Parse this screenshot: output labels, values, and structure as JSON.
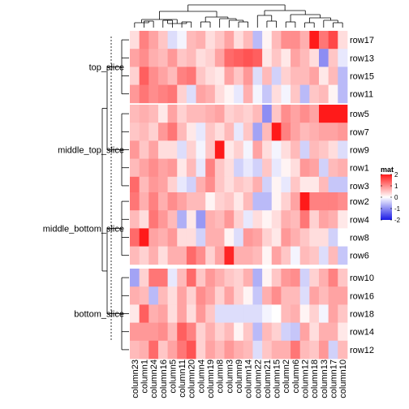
{
  "chart_data": {
    "type": "heatmap",
    "title": "",
    "xlabel": "",
    "ylabel": "",
    "columns": [
      "column23",
      "column1",
      "column24",
      "column16",
      "column5",
      "column11",
      "column20",
      "column4",
      "column19",
      "column8",
      "column3",
      "column9",
      "column14",
      "column22",
      "column21",
      "column15",
      "column2",
      "column6",
      "column12",
      "column18",
      "column13",
      "column17",
      "column10"
    ],
    "slices": [
      {
        "name": "top_slice",
        "rows": [
          "row17",
          "row13",
          "row15",
          "row11"
        ]
      },
      {
        "name": "middle_top_slice",
        "rows": [
          "row5",
          "row7",
          "row9",
          "row1",
          "row3"
        ]
      },
      {
        "name": "middle_bottom_slice",
        "rows": [
          "row2",
          "row4",
          "row8",
          "row6"
        ]
      },
      {
        "name": "bottom_slice",
        "rows": [
          "row10",
          "row16",
          "row18",
          "row14",
          "row12"
        ]
      }
    ],
    "values": {
      "row17": [
        0.3,
        1.1,
        0.8,
        0.5,
        -0.3,
        -0.1,
        0.6,
        0.7,
        0.3,
        0.5,
        0.8,
        0.3,
        0.6,
        -0.6,
        0.1,
        0.6,
        1.0,
        1.0,
        0.7,
        2.2,
        1.2,
        1.6,
        0.3
      ],
      "row13": [
        0.8,
        1.0,
        0.7,
        0.6,
        0.9,
        0.5,
        0.6,
        0.3,
        0.4,
        0.8,
        1.3,
        1.4,
        1.5,
        1.4,
        0.2,
        0.5,
        0.2,
        0.8,
        0.6,
        0.3,
        -1.0,
        0.5,
        -0.2
      ],
      "row15": [
        0.4,
        1.4,
        1.0,
        0.8,
        0.6,
        1.1,
        1.2,
        0.5,
        0.3,
        0.2,
        0.8,
        0.5,
        0.9,
        -0.3,
        0.6,
        -0.4,
        0.4,
        0.6,
        0.6,
        0.8,
        0.2,
        0.6,
        -0.6
      ],
      "row11": [
        0.9,
        1.2,
        1.0,
        1.1,
        1.2,
        0.4,
        -0.3,
        0.8,
        0.7,
        0.3,
        0.1,
        -0.2,
        0.7,
        -0.1,
        -0.5,
        0.3,
        -0.1,
        0.5,
        -0.6,
        0.5,
        0.6,
        0.1,
        -0.6
      ],
      "row5": [
        0.6,
        0.7,
        0.6,
        0.2,
        0.8,
        0.4,
        0.6,
        0.6,
        0.7,
        0.8,
        0.4,
        0.5,
        0.4,
        0.6,
        -1.0,
        0.5,
        1.0,
        0.8,
        1.0,
        0.8,
        2.2,
        2.1,
        2.0
      ],
      "row7": [
        0.5,
        0.6,
        0.4,
        0.9,
        1.2,
        0.6,
        0.2,
        -0.2,
        0.5,
        0.3,
        0.6,
        -0.2,
        0.5,
        -0.8,
        0.6,
        2.2,
        1.1,
        0.8,
        0.6,
        0.7,
        0.8,
        0.8,
        0.9
      ],
      "row9": [
        0.9,
        0.5,
        0.8,
        0.3,
        0.3,
        -0.3,
        0.4,
        -0.1,
        0.5,
        2.0,
        0.2,
        0.4,
        -0.1,
        0.8,
        0.3,
        -0.1,
        0.3,
        0.6,
        -0.4,
        0.6,
        0.5,
        0.3,
        -0.3
      ],
      "row1": [
        0.6,
        0.8,
        1.0,
        0.8,
        0.9,
        0.2,
        0.6,
        -0.2,
        1.1,
        0.5,
        0.3,
        -0.4,
        -0.2,
        -0.4,
        0.5,
        -0.2,
        0.1,
        0.3,
        0.9,
        0.8,
        -0.4,
        0.6,
        0.7
      ],
      "row3": [
        1.3,
        0.6,
        0.9,
        0.8,
        0.4,
        -0.2,
        -0.4,
        0.7,
        1.0,
        0.5,
        0.3,
        0.5,
        0.4,
        0.7,
        -0.4,
        0.1,
        -0.2,
        0.5,
        0.2,
        0.2,
        0.6,
        -0.5,
        -0.5
      ],
      "row2": [
        1.2,
        0.7,
        1.1,
        0.7,
        1.0,
        0.8,
        0.6,
        0.6,
        0.1,
        0.4,
        0.5,
        0.2,
        0.6,
        -0.6,
        -0.6,
        0.1,
        0.4,
        0.8,
        2.0,
        1.1,
        1.1,
        1.1,
        1.0
      ],
      "row4": [
        0.6,
        0.3,
        1.2,
        0.9,
        0.6,
        -0.7,
        0.2,
        -0.9,
        0.7,
        0.6,
        0.9,
        0.4,
        -0.2,
        0.3,
        0.1,
        0.3,
        0.7,
        0.6,
        1.2,
        0.4,
        0.8,
        0.7,
        0.2
      ],
      "row8": [
        1.3,
        2.2,
        0.8,
        0.7,
        0.9,
        0.3,
        0.3,
        -0.4,
        0.7,
        0.7,
        0.1,
        -0.3,
        0.9,
        0.8,
        0.4,
        0.2,
        0.9,
        0.7,
        0.5,
        0.3,
        0.3,
        -0.4,
        0.0
      ],
      "row6": [
        0.6,
        0.4,
        0.7,
        0.3,
        0.7,
        0.7,
        1.3,
        1.0,
        0.4,
        0.8,
        1.9,
        0.7,
        0.7,
        0.6,
        0.1,
        0.8,
        0.5,
        -0.1,
        0.6,
        0.5,
        -0.3,
        0.6,
        -0.5
      ],
      "row10": [
        -0.8,
        0.4,
        1.2,
        1.2,
        -0.2,
        0.6,
        1.3,
        0.5,
        0.9,
        0.7,
        0.5,
        0.4,
        0.7,
        -0.7,
        0.1,
        0.5,
        0.9,
        1.0,
        -0.4,
        0.4,
        0.7,
        1.1,
        0.5
      ],
      "row16": [
        0.7,
        0.6,
        -0.6,
        0.6,
        0.3,
        0.8,
        0.4,
        1.0,
        0.8,
        0.4,
        0.8,
        0.4,
        0.1,
        -0.5,
        0.7,
        1.0,
        0.6,
        0.6,
        -0.3,
        0.8,
        0.6,
        0.8,
        0.8
      ],
      "row18": [
        0.2,
        1.4,
        0.7,
        0.8,
        0.3,
        0.8,
        0.3,
        0.9,
        0.5,
        -0.3,
        -0.3,
        -0.3,
        -0.3,
        -0.3,
        -0.1,
        0.0,
        0.6,
        0.7,
        0.1,
        0.4,
        -0.1,
        0.8,
        0.5
      ],
      "row14": [
        0.9,
        0.9,
        0.9,
        1.0,
        0.6,
        1.4,
        1.1,
        0.4,
        0.7,
        0.4,
        0.6,
        0.1,
        0.5,
        -0.6,
        0.6,
        0.4,
        -0.4,
        -0.5,
        0.8,
        0.3,
        0.7,
        0.7,
        0.2
      ],
      "row12": [
        0.6,
        0.7,
        1.3,
        0.5,
        0.8,
        1.2,
        1.5,
        0.4,
        0.8,
        0.6,
        0.9,
        0.7,
        0.6,
        -0.3,
        0.5,
        0.7,
        0.7,
        1.2,
        0.6,
        0.5,
        0.9,
        -0.4,
        0.6
      ]
    },
    "legend": {
      "title": "mat",
      "ticks": [
        2,
        1,
        0,
        -1,
        -2
      ],
      "placement": "right"
    },
    "color_scale": {
      "low": "#1a1ae6",
      "mid": "#ffffff",
      "high": "#ff1a1a",
      "domain": [
        -2,
        2
      ]
    }
  }
}
